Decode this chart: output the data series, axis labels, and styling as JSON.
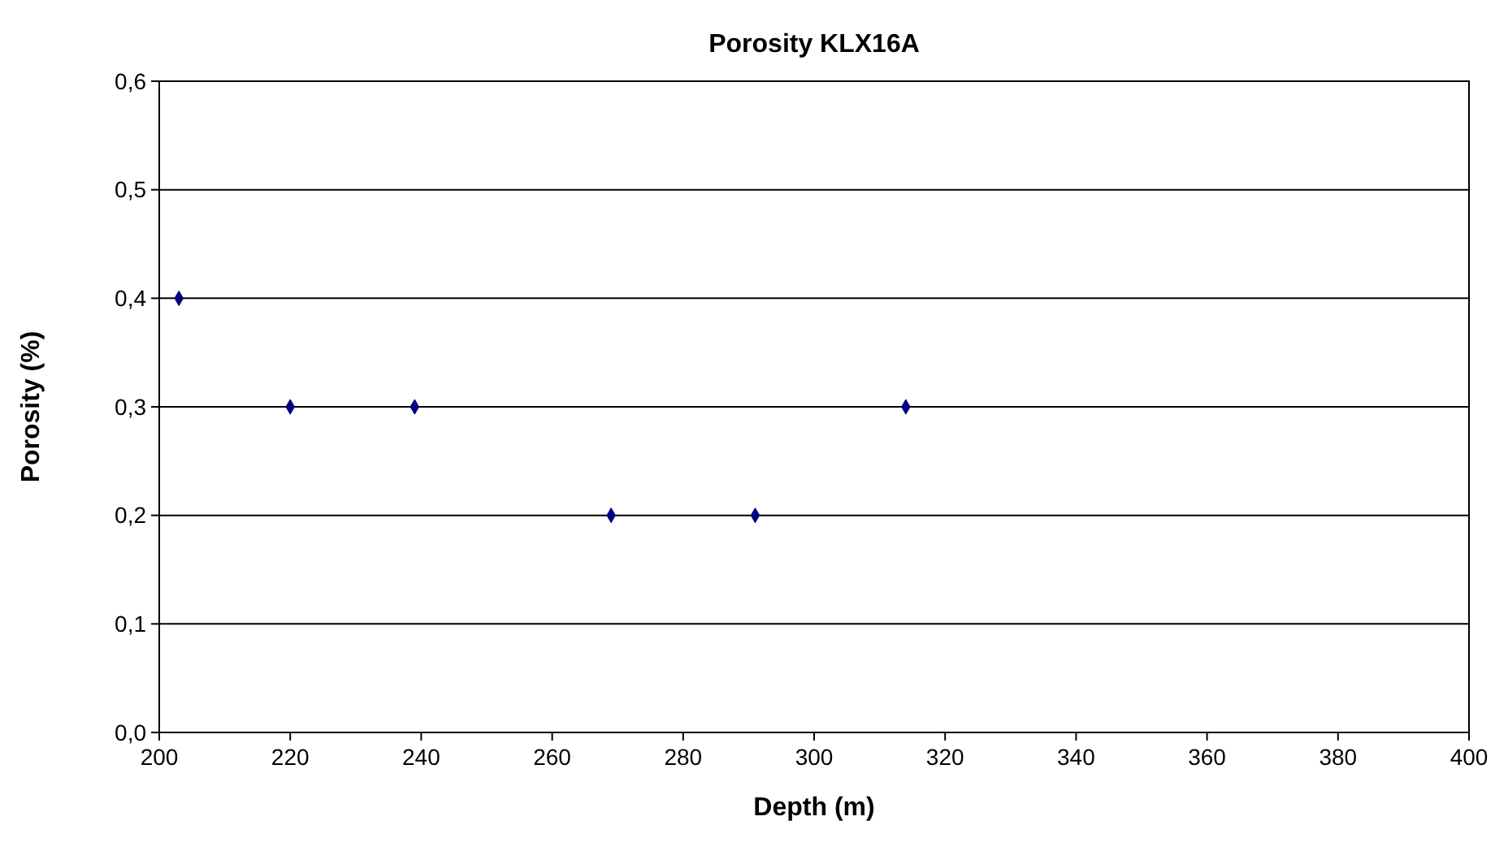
{
  "chart_data": {
    "type": "scatter",
    "title": "Porosity KLX16A",
    "xlabel": "Depth (m)",
    "ylabel": "Porosity (%)",
    "x": [
      203,
      220,
      239,
      269,
      291,
      314
    ],
    "series": [
      {
        "color": "#000080",
        "values": [
          0.4,
          0.3,
          0.3,
          0.2,
          0.2,
          0.3
        ]
      }
    ],
    "xlim": [
      200,
      400
    ],
    "xticks": [
      200,
      220,
      240,
      260,
      280,
      300,
      320,
      340,
      360,
      380,
      400
    ],
    "ylim": [
      0,
      0.6
    ],
    "yticks": [
      {
        "value": 0,
        "label": "0,0"
      },
      {
        "value": 0.1,
        "label": "0,1"
      },
      {
        "value": 0.2,
        "label": "0,2"
      },
      {
        "value": 0.3,
        "label": "0,3"
      },
      {
        "value": 0.4,
        "label": "0,4"
      },
      {
        "value": 0.5,
        "label": "0,5"
      },
      {
        "value": 0.6,
        "label": "0,6"
      }
    ],
    "grid": "y",
    "marker": "diamond"
  }
}
